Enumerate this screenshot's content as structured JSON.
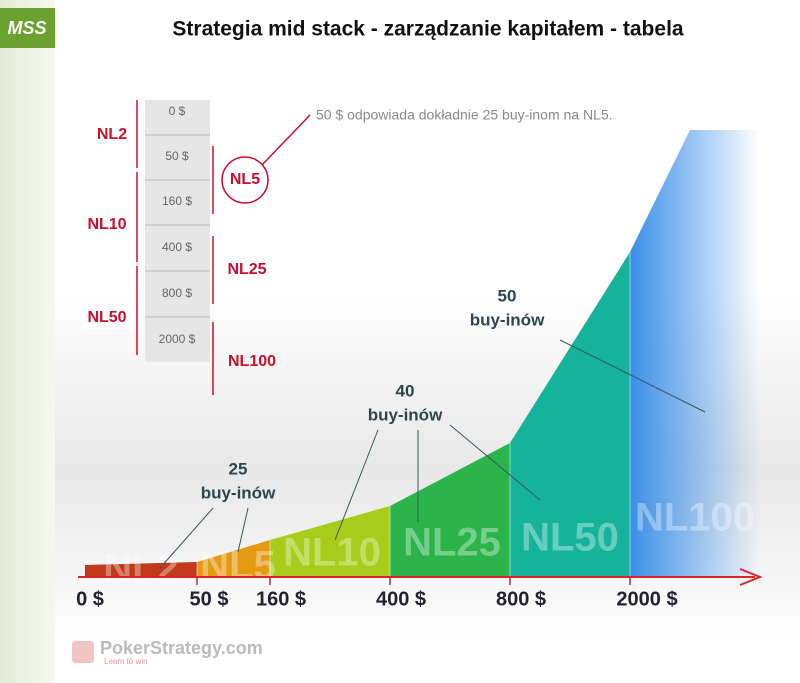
{
  "header": {
    "badge": "MSS",
    "title": "Strategia mid stack - zarządzanie kapitałem - tabela"
  },
  "stack": {
    "chips": [
      "0 $",
      "50 $",
      "160 $",
      "400 $",
      "800 $",
      "2000 $"
    ],
    "left_levels": [
      "NL2",
      "NL10",
      "NL50"
    ],
    "right_levels": [
      "NL5",
      "NL25",
      "NL100"
    ]
  },
  "note": "50 $ odpowiada dokładnie 25 buy-inom na NL5.",
  "graph": {
    "axis_labels": [
      "0 $",
      "50 $",
      "160 $",
      "400 $",
      "800 $",
      "2000 $"
    ],
    "zone_labels": [
      "NL2",
      "NL5",
      "NL10",
      "NL25",
      "NL50",
      "NL100"
    ],
    "callouts": [
      {
        "line1": "25",
        "line2": "buy-inów"
      },
      {
        "line1": "40",
        "line2": "buy-inów"
      },
      {
        "line1": "50",
        "line2": "buy-inów"
      }
    ]
  },
  "footer": {
    "brand": "PokerStrategy.com",
    "tagline": "Learn to win"
  }
}
